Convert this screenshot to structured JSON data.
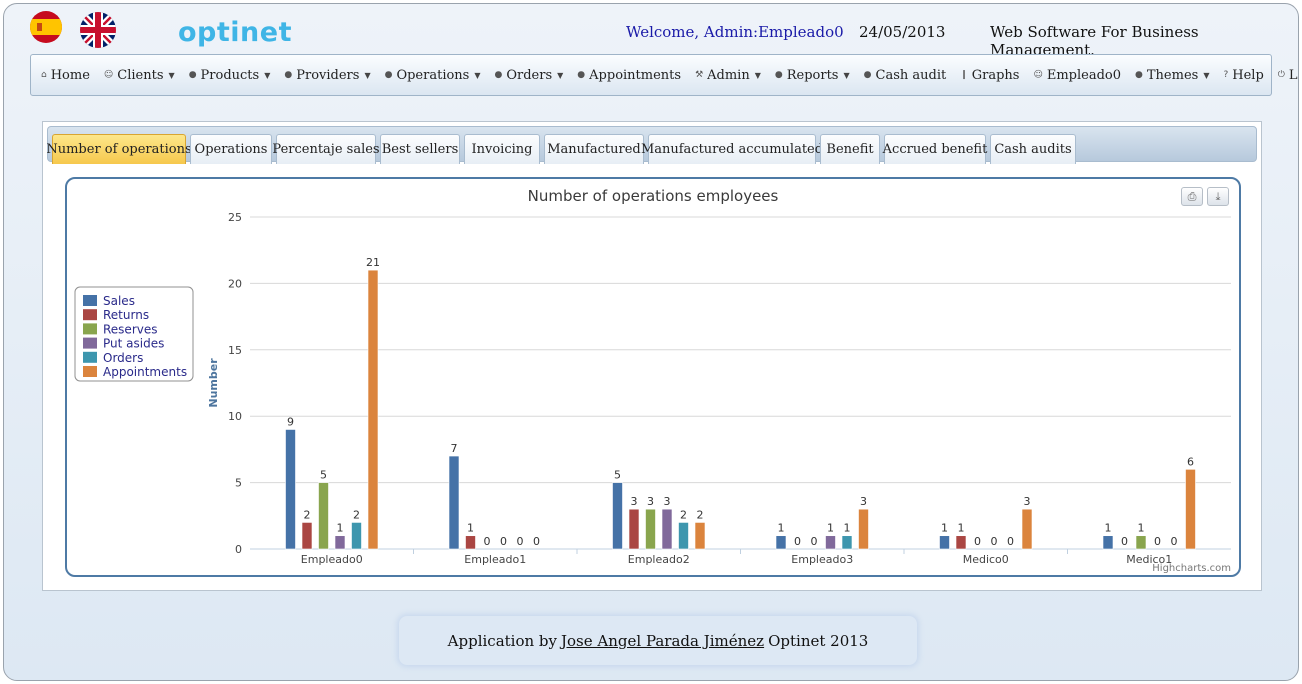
{
  "header": {
    "logo": "optinet",
    "welcome": "Welcome, Admin:Empleado0",
    "date": "24/05/2013",
    "tagline": "Web Software For Business Management."
  },
  "nav": [
    {
      "label": "Home",
      "icon": "home-icon",
      "dropdown": false
    },
    {
      "label": "Clients",
      "icon": "user-icon",
      "dropdown": true
    },
    {
      "label": "Products",
      "icon": "bullet-icon",
      "dropdown": true
    },
    {
      "label": "Providers",
      "icon": "bullet-icon",
      "dropdown": true
    },
    {
      "label": "Operations",
      "icon": "bullet-icon",
      "dropdown": true
    },
    {
      "label": "Orders",
      "icon": "bullet-icon",
      "dropdown": true
    },
    {
      "label": "Appointments",
      "icon": "bullet-icon",
      "dropdown": false
    },
    {
      "label": "Admin",
      "icon": "wrench-icon",
      "dropdown": true
    },
    {
      "label": "Reports",
      "icon": "bullet-icon",
      "dropdown": true
    },
    {
      "label": "Cash audit",
      "icon": "bullet-icon",
      "dropdown": false
    },
    {
      "label": "Graphs",
      "icon": "bar-chart-icon",
      "dropdown": false
    },
    {
      "label": "Empleado0",
      "icon": "user-icon",
      "dropdown": false
    },
    {
      "label": "Themes",
      "icon": "bullet-icon",
      "dropdown": true
    },
    {
      "label": "Help",
      "icon": "question-icon",
      "dropdown": false
    },
    {
      "label": "Logout",
      "icon": "power-icon",
      "dropdown": false
    }
  ],
  "tabs": [
    {
      "label": "Number of operations",
      "active": true
    },
    {
      "label": "Operations",
      "active": false
    },
    {
      "label": "Percentaje sales",
      "active": false
    },
    {
      "label": "Best sellers",
      "active": false
    },
    {
      "label": "Invoicing",
      "active": false
    },
    {
      "label": "Manufactured",
      "active": false
    },
    {
      "label": "Manufactured accumulated",
      "active": false
    },
    {
      "label": "Benefit",
      "active": false
    },
    {
      "label": "Accrued benefit",
      "active": false
    },
    {
      "label": "Cash audits",
      "active": false
    }
  ],
  "chart_data": {
    "type": "bar",
    "title": "Number of operations employees",
    "ylabel": "Number",
    "xlabel": "",
    "ylim": [
      0,
      25
    ],
    "yticks": [
      0,
      5,
      10,
      15,
      20,
      25
    ],
    "grid": true,
    "legend": "left",
    "credits": "Highcharts.com",
    "categories": [
      "Empleado0",
      "Empleado1",
      "Empleado2",
      "Empleado3",
      "Medico0",
      "Medico1"
    ],
    "series": [
      {
        "name": "Sales",
        "color": "#4572A7",
        "values": [
          9,
          7,
          5,
          1,
          1,
          1
        ]
      },
      {
        "name": "Returns",
        "color": "#AA4643",
        "values": [
          2,
          1,
          3,
          0,
          1,
          0
        ]
      },
      {
        "name": "Reserves",
        "color": "#89A54E",
        "values": [
          5,
          0,
          3,
          0,
          0,
          1
        ]
      },
      {
        "name": "Put asides",
        "color": "#80699B",
        "values": [
          1,
          0,
          3,
          1,
          0,
          0
        ]
      },
      {
        "name": "Orders",
        "color": "#3D96AE",
        "values": [
          2,
          0,
          2,
          1,
          0,
          0
        ]
      },
      {
        "name": "Appointments",
        "color": "#DB843D",
        "values": [
          21,
          0,
          2,
          3,
          3,
          6
        ]
      }
    ]
  },
  "footer": {
    "prefix": "Application by",
    "author": "Jose Angel Parada Jiménez",
    "suffix": "Optinet 2013"
  }
}
